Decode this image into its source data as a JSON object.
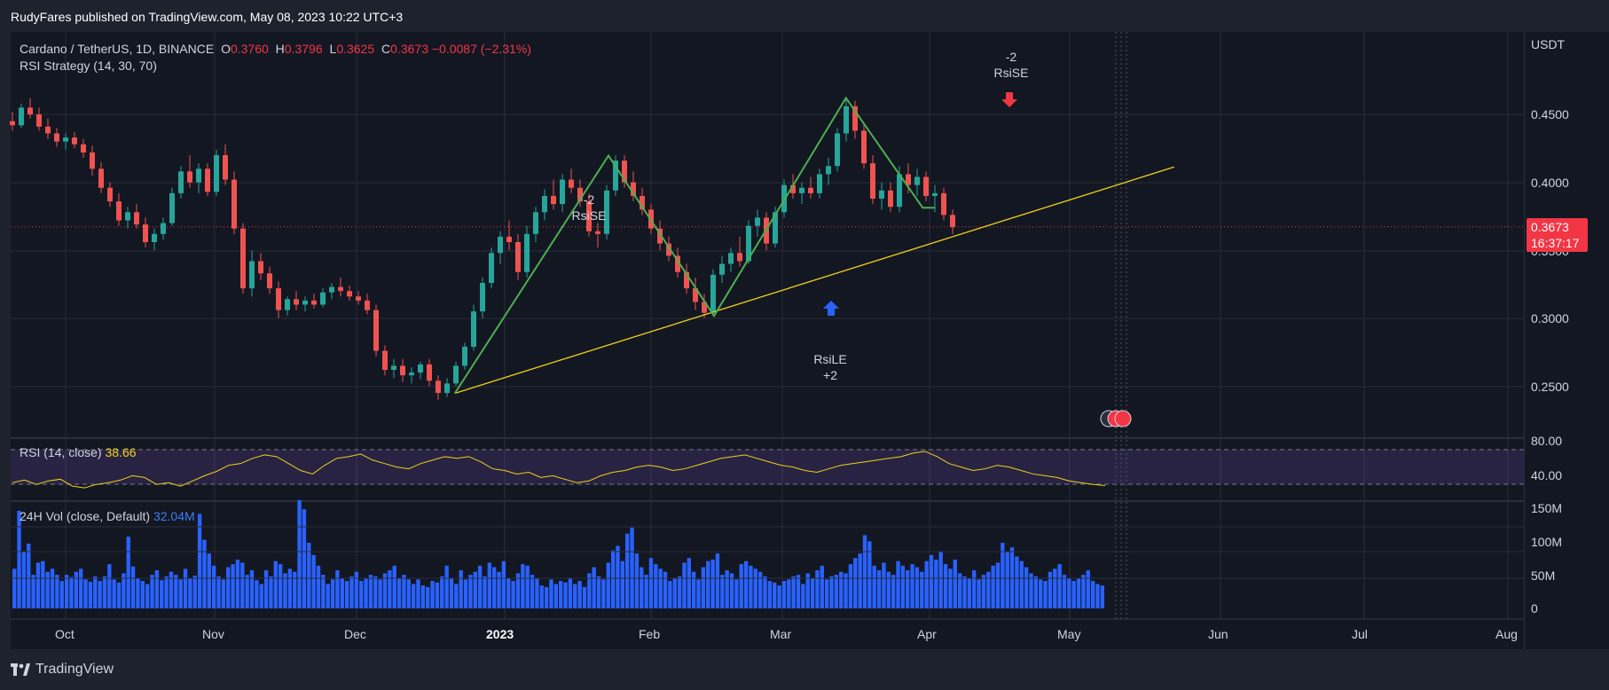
{
  "header": {
    "published": "RudyFares published on TradingView.com, May 08, 2023 10:22 UTC+3"
  },
  "legend": {
    "symbol": "Cardano / TetherUS, 1D, BINANCE",
    "o_label": "O",
    "o_value": "0.3760",
    "h_label": "H",
    "h_value": "0.3796",
    "l_label": "L",
    "l_value": "0.3625",
    "c_label": "C",
    "c_value": "0.3673",
    "change": "−0.0087 (−2.31%)",
    "strategy": "RSI Strategy (14, 30, 70)"
  },
  "rsi_panel": {
    "label": "RSI (14, close)",
    "value": "38.66",
    "levels": [
      "80.00",
      "40.00"
    ]
  },
  "vol_panel": {
    "label": "24H Vol (close, Default)",
    "value": "32.04M",
    "levels": [
      "150M",
      "100M",
      "50M",
      "0"
    ]
  },
  "price_axis": {
    "currency": "USDT",
    "levels": [
      "0.4500",
      "0.4000",
      "0.3500",
      "0.3000",
      "0.2500"
    ],
    "last_price": "0.3673",
    "countdown": "16:37:17"
  },
  "time_axis": {
    "labels": [
      "Oct",
      "Nov",
      "Dec",
      "2023",
      "Feb",
      "Mar",
      "Apr",
      "May",
      "Jun",
      "Jul",
      "Aug"
    ]
  },
  "annotations": {
    "sell1": {
      "qty": "-2",
      "name": "RsiSE"
    },
    "sell2": {
      "qty": "-2",
      "name": "RsiSE"
    },
    "buy1": {
      "name": "RsiLE",
      "qty": "+2"
    }
  },
  "footer": {
    "brand": "TradingView"
  },
  "colors": {
    "up": "#26a69a",
    "down": "#ef5350",
    "zigzag": "#4caf50",
    "trend": "#f0d11a",
    "rsi": "#f0d11a",
    "vol": "#2962ff"
  },
  "chart_data": {
    "type": "candlestick",
    "series_key": [
      "t",
      "o",
      "h",
      "l",
      "c"
    ],
    "candles": [
      [
        0,
        0.445,
        0.452,
        0.438,
        0.442
      ],
      [
        4,
        0.442,
        0.458,
        0.44,
        0.455
      ],
      [
        8,
        0.455,
        0.462,
        0.447,
        0.45
      ],
      [
        12,
        0.45,
        0.455,
        0.438,
        0.441
      ],
      [
        16,
        0.441,
        0.447,
        0.432,
        0.436
      ],
      [
        20,
        0.436,
        0.44,
        0.426,
        0.43
      ],
      [
        24,
        0.43,
        0.436,
        0.424,
        0.433
      ],
      [
        28,
        0.433,
        0.437,
        0.425,
        0.428
      ],
      [
        32,
        0.428,
        0.432,
        0.418,
        0.422
      ],
      [
        36,
        0.422,
        0.427,
        0.405,
        0.41
      ],
      [
        40,
        0.41,
        0.415,
        0.392,
        0.396
      ],
      [
        44,
        0.396,
        0.4,
        0.382,
        0.386
      ],
      [
        48,
        0.386,
        0.392,
        0.368,
        0.372
      ],
      [
        52,
        0.372,
        0.382,
        0.366,
        0.378
      ],
      [
        56,
        0.378,
        0.384,
        0.366,
        0.369
      ],
      [
        60,
        0.369,
        0.374,
        0.352,
        0.356
      ],
      [
        64,
        0.356,
        0.366,
        0.35,
        0.362
      ],
      [
        68,
        0.362,
        0.374,
        0.358,
        0.37
      ],
      [
        72,
        0.37,
        0.396,
        0.368,
        0.392
      ],
      [
        76,
        0.392,
        0.412,
        0.388,
        0.408
      ],
      [
        80,
        0.408,
        0.42,
        0.396,
        0.4
      ],
      [
        84,
        0.4,
        0.414,
        0.392,
        0.41
      ],
      [
        88,
        0.41,
        0.414,
        0.39,
        0.393
      ],
      [
        92,
        0.393,
        0.424,
        0.39,
        0.42
      ],
      [
        96,
        0.42,
        0.428,
        0.398,
        0.402
      ],
      [
        100,
        0.402,
        0.408,
        0.362,
        0.366
      ],
      [
        104,
        0.366,
        0.37,
        0.318,
        0.322
      ],
      [
        108,
        0.322,
        0.35,
        0.316,
        0.342
      ],
      [
        112,
        0.342,
        0.348,
        0.328,
        0.333
      ],
      [
        116,
        0.333,
        0.338,
        0.318,
        0.322
      ],
      [
        120,
        0.322,
        0.327,
        0.3,
        0.306
      ],
      [
        124,
        0.306,
        0.316,
        0.302,
        0.314
      ],
      [
        128,
        0.314,
        0.32,
        0.306,
        0.31
      ],
      [
        132,
        0.31,
        0.316,
        0.305,
        0.313
      ],
      [
        136,
        0.313,
        0.318,
        0.307,
        0.31
      ],
      [
        140,
        0.31,
        0.322,
        0.308,
        0.319
      ],
      [
        144,
        0.319,
        0.326,
        0.314,
        0.323
      ],
      [
        148,
        0.323,
        0.33,
        0.316,
        0.32
      ],
      [
        152,
        0.32,
        0.324,
        0.313,
        0.316
      ],
      [
        156,
        0.316,
        0.32,
        0.31,
        0.313
      ],
      [
        160,
        0.313,
        0.318,
        0.303,
        0.306
      ],
      [
        164,
        0.306,
        0.31,
        0.272,
        0.276
      ],
      [
        168,
        0.276,
        0.28,
        0.258,
        0.262
      ],
      [
        172,
        0.262,
        0.27,
        0.256,
        0.265
      ],
      [
        176,
        0.265,
        0.27,
        0.253,
        0.258
      ],
      [
        180,
        0.258,
        0.264,
        0.252,
        0.26
      ],
      [
        184,
        0.26,
        0.268,
        0.255,
        0.266
      ],
      [
        188,
        0.266,
        0.27,
        0.25,
        0.254
      ],
      [
        192,
        0.254,
        0.258,
        0.24,
        0.245
      ],
      [
        196,
        0.245,
        0.256,
        0.242,
        0.252
      ],
      [
        200,
        0.252,
        0.268,
        0.25,
        0.265
      ],
      [
        204,
        0.265,
        0.282,
        0.262,
        0.279
      ],
      [
        208,
        0.279,
        0.31,
        0.276,
        0.305
      ],
      [
        212,
        0.305,
        0.33,
        0.3,
        0.326
      ],
      [
        216,
        0.326,
        0.352,
        0.322,
        0.348
      ],
      [
        220,
        0.348,
        0.364,
        0.34,
        0.36
      ],
      [
        224,
        0.36,
        0.372,
        0.35,
        0.356
      ],
      [
        228,
        0.356,
        0.362,
        0.328,
        0.334
      ],
      [
        232,
        0.334,
        0.368,
        0.33,
        0.362
      ],
      [
        236,
        0.362,
        0.382,
        0.356,
        0.378
      ],
      [
        240,
        0.378,
        0.395,
        0.372,
        0.39
      ],
      [
        244,
        0.39,
        0.402,
        0.38,
        0.384
      ],
      [
        248,
        0.384,
        0.406,
        0.378,
        0.402
      ],
      [
        252,
        0.402,
        0.41,
        0.392,
        0.396
      ],
      [
        256,
        0.396,
        0.402,
        0.382,
        0.386
      ],
      [
        260,
        0.386,
        0.392,
        0.36,
        0.364
      ],
      [
        264,
        0.364,
        0.37,
        0.352,
        0.362
      ],
      [
        268,
        0.362,
        0.398,
        0.358,
        0.394
      ],
      [
        272,
        0.394,
        0.42,
        0.39,
        0.416
      ],
      [
        276,
        0.416,
        0.42,
        0.396,
        0.4
      ],
      [
        280,
        0.4,
        0.408,
        0.386,
        0.39
      ],
      [
        284,
        0.39,
        0.396,
        0.376,
        0.38
      ],
      [
        288,
        0.38,
        0.384,
        0.362,
        0.366
      ],
      [
        292,
        0.366,
        0.372,
        0.35,
        0.355
      ],
      [
        296,
        0.355,
        0.36,
        0.342,
        0.346
      ],
      [
        300,
        0.346,
        0.352,
        0.33,
        0.334
      ],
      [
        304,
        0.334,
        0.34,
        0.318,
        0.322
      ],
      [
        308,
        0.322,
        0.33,
        0.306,
        0.312
      ],
      [
        312,
        0.312,
        0.318,
        0.3,
        0.304
      ],
      [
        316,
        0.304,
        0.336,
        0.302,
        0.332
      ],
      [
        320,
        0.332,
        0.346,
        0.326,
        0.34
      ],
      [
        324,
        0.34,
        0.352,
        0.334,
        0.348
      ],
      [
        328,
        0.348,
        0.36,
        0.338,
        0.342
      ],
      [
        332,
        0.342,
        0.372,
        0.34,
        0.368
      ],
      [
        336,
        0.368,
        0.38,
        0.36,
        0.374
      ],
      [
        340,
        0.374,
        0.378,
        0.35,
        0.355
      ],
      [
        344,
        0.355,
        0.382,
        0.352,
        0.378
      ],
      [
        348,
        0.378,
        0.402,
        0.374,
        0.398
      ],
      [
        352,
        0.398,
        0.406,
        0.388,
        0.392
      ],
      [
        356,
        0.392,
        0.4,
        0.384,
        0.396
      ],
      [
        360,
        0.396,
        0.404,
        0.388,
        0.392
      ],
      [
        364,
        0.392,
        0.41,
        0.388,
        0.406
      ],
      [
        368,
        0.406,
        0.418,
        0.398,
        0.412
      ],
      [
        372,
        0.412,
        0.44,
        0.408,
        0.436
      ],
      [
        376,
        0.436,
        0.462,
        0.43,
        0.456
      ],
      [
        380,
        0.456,
        0.46,
        0.432,
        0.438
      ],
      [
        384,
        0.438,
        0.444,
        0.41,
        0.414
      ],
      [
        388,
        0.414,
        0.42,
        0.384,
        0.388
      ],
      [
        392,
        0.388,
        0.4,
        0.38,
        0.394
      ],
      [
        396,
        0.394,
        0.4,
        0.378,
        0.382
      ],
      [
        400,
        0.382,
        0.412,
        0.378,
        0.406
      ],
      [
        404,
        0.406,
        0.414,
        0.392,
        0.398
      ],
      [
        408,
        0.398,
        0.41,
        0.39,
        0.404
      ],
      [
        412,
        0.404,
        0.408,
        0.386,
        0.39
      ],
      [
        416,
        0.39,
        0.398,
        0.378,
        0.392
      ],
      [
        420,
        0.392,
        0.396,
        0.372,
        0.376
      ],
      [
        424,
        0.376,
        0.38,
        0.362,
        0.367
      ]
    ],
    "trendline": [
      [
        199.5,
        0.2447
      ],
      [
        523.9,
        0.4113
      ]
    ],
    "zigzag": [
      [
        199.5,
        0.2447
      ],
      [
        268.8,
        0.4197
      ],
      [
        316.4,
        0.3017
      ],
      [
        375.9,
        0.4621
      ],
      [
        410.5,
        0.3813
      ],
      [
        415.9,
        0.3813
      ]
    ],
    "rsi": [
      42,
      45,
      40,
      44,
      46,
      38,
      36,
      40,
      42,
      45,
      50,
      48,
      40,
      42,
      38,
      44,
      50,
      55,
      62,
      64,
      70,
      74,
      72,
      64,
      56,
      52,
      62,
      70,
      72,
      75,
      68,
      64,
      60,
      58,
      64,
      68,
      72,
      70,
      72,
      66,
      58,
      56,
      52,
      54,
      48,
      50,
      46,
      42,
      44,
      50,
      54,
      56,
      60,
      62,
      60,
      56,
      58,
      62,
      66,
      70,
      72,
      74,
      70,
      66,
      62,
      60,
      56,
      54,
      58,
      62,
      64,
      66,
      68,
      70,
      72,
      76,
      78,
      72,
      64,
      60,
      56,
      58,
      62,
      60,
      56,
      52,
      50,
      48,
      44,
      42,
      40,
      38.66
    ],
    "volume_m": [
      52,
      128,
      74,
      85,
      44,
      60,
      62,
      48,
      52,
      44,
      36,
      44,
      41,
      48,
      52,
      38,
      35,
      42,
      36,
      42,
      58,
      38,
      34,
      46,
      94,
      55,
      40,
      36,
      32,
      44,
      50,
      37,
      42,
      48,
      44,
      38,
      52,
      40,
      43,
      124,
      90,
      72,
      56,
      42,
      38,
      54,
      58,
      64,
      60,
      44,
      50,
      37,
      32,
      50,
      42,
      62,
      58,
      46,
      52,
      48,
      142,
      130,
      86,
      70,
      56,
      44,
      32,
      38,
      50,
      40,
      36,
      42,
      48,
      36,
      40,
      44,
      42,
      38,
      46,
      50,
      56,
      40,
      44,
      38,
      32,
      38,
      30,
      28,
      36,
      34,
      42,
      56,
      40,
      32,
      50,
      38,
      44,
      48,
      56,
      42,
      60,
      54,
      48,
      62,
      40,
      36,
      46,
      58,
      56,
      44,
      40,
      30,
      28,
      38,
      32,
      36,
      34,
      40,
      32,
      36,
      28,
      46,
      54,
      42,
      38,
      60,
      76,
      82,
      62,
      98,
      106,
      72,
      54,
      44,
      66,
      58,
      52,
      48,
      36,
      40,
      42,
      60,
      66,
      48,
      38,
      54,
      62,
      64,
      72,
      44,
      50,
      46,
      38,
      58,
      62,
      56,
      52,
      48,
      42,
      36,
      34,
      30,
      36,
      38,
      42,
      44,
      32,
      46,
      40,
      50,
      56,
      38,
      42,
      44,
      48,
      46,
      58,
      66,
      72,
      96,
      88,
      56,
      50,
      60,
      48,
      44,
      62,
      56,
      50,
      58,
      54,
      48,
      62,
      70,
      64,
      74,
      58,
      52,
      64,
      46,
      42,
      40,
      50,
      38,
      44,
      48,
      56,
      60,
      86,
      74,
      80,
      68,
      62,
      54,
      46,
      42,
      38,
      36,
      48,
      52,
      58,
      44,
      40,
      36,
      40,
      44,
      50,
      36,
      32,
      30
    ]
  }
}
